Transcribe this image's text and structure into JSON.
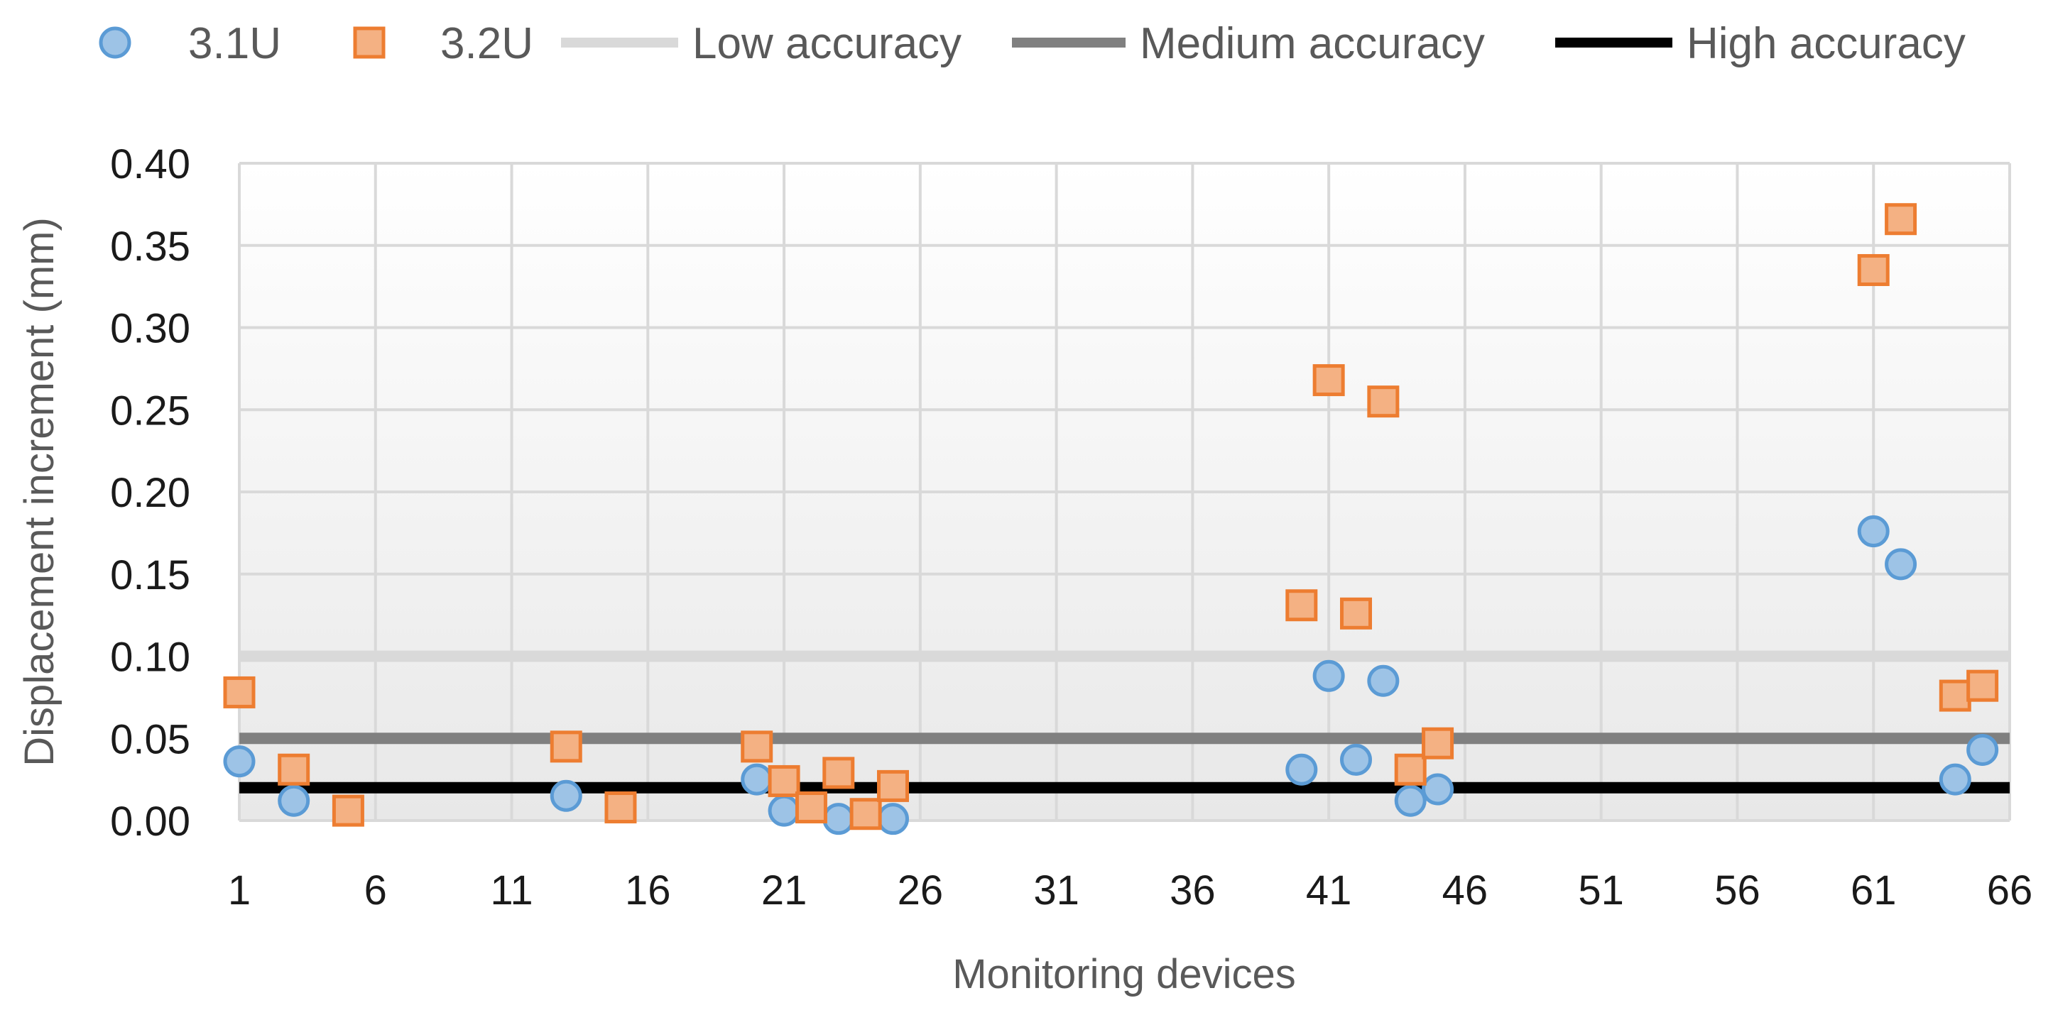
{
  "chart_data": {
    "type": "scatter",
    "title": "",
    "xlabel": "Monitoring devices",
    "ylabel": "Displacement increment (mm)",
    "xlim": [
      1,
      66
    ],
    "ylim": [
      0,
      0.4
    ],
    "x_ticks": [
      "1",
      "6",
      "11",
      "16",
      "21",
      "26",
      "31",
      "36",
      "41",
      "46",
      "51",
      "56",
      "61",
      "66"
    ],
    "y_ticks": [
      "0.00",
      "0.05",
      "0.10",
      "0.15",
      "0.20",
      "0.25",
      "0.30",
      "0.35",
      "0.40"
    ],
    "grid": true,
    "legend_position": "top",
    "series": [
      {
        "name": "3.1U",
        "marker": "circle",
        "fill": "#9DC3E6",
        "stroke": "#5B9BD5",
        "points": [
          {
            "x": 1,
            "y": 0.036
          },
          {
            "x": 3,
            "y": 0.012
          },
          {
            "x": 13,
            "y": 0.015
          },
          {
            "x": 20,
            "y": 0.025
          },
          {
            "x": 21,
            "y": 0.006
          },
          {
            "x": 23,
            "y": 0.001
          },
          {
            "x": 25,
            "y": 0.001
          },
          {
            "x": 40,
            "y": 0.031
          },
          {
            "x": 41,
            "y": 0.088
          },
          {
            "x": 42,
            "y": 0.037
          },
          {
            "x": 43,
            "y": 0.085
          },
          {
            "x": 44,
            "y": 0.012
          },
          {
            "x": 45,
            "y": 0.019
          },
          {
            "x": 61,
            "y": 0.176
          },
          {
            "x": 62,
            "y": 0.156
          },
          {
            "x": 64,
            "y": 0.025
          },
          {
            "x": 65,
            "y": 0.043
          }
        ]
      },
      {
        "name": "3.2U",
        "marker": "square",
        "fill": "#F4B183",
        "stroke": "#ED7D31",
        "points": [
          {
            "x": 1,
            "y": 0.078
          },
          {
            "x": 3,
            "y": 0.031
          },
          {
            "x": 5,
            "y": 0.006
          },
          {
            "x": 13,
            "y": 0.045
          },
          {
            "x": 15,
            "y": 0.008
          },
          {
            "x": 20,
            "y": 0.045
          },
          {
            "x": 21,
            "y": 0.024
          },
          {
            "x": 22,
            "y": 0.008
          },
          {
            "x": 23,
            "y": 0.029
          },
          {
            "x": 24,
            "y": 0.004
          },
          {
            "x": 25,
            "y": 0.021
          },
          {
            "x": 40,
            "y": 0.131
          },
          {
            "x": 41,
            "y": 0.268
          },
          {
            "x": 42,
            "y": 0.126
          },
          {
            "x": 43,
            "y": 0.255
          },
          {
            "x": 44,
            "y": 0.031
          },
          {
            "x": 45,
            "y": 0.047
          },
          {
            "x": 61,
            "y": 0.335
          },
          {
            "x": 62,
            "y": 0.366
          },
          {
            "x": 64,
            "y": 0.076
          },
          {
            "x": 65,
            "y": 0.082
          }
        ]
      }
    ],
    "reference_lines": [
      {
        "name": "Low accuracy",
        "y": 0.1,
        "color": "#D9D9D9"
      },
      {
        "name": "Medium accuracy",
        "y": 0.05,
        "color": "#808080"
      },
      {
        "name": "High accuracy",
        "y": 0.02,
        "color": "#000000"
      }
    ]
  }
}
